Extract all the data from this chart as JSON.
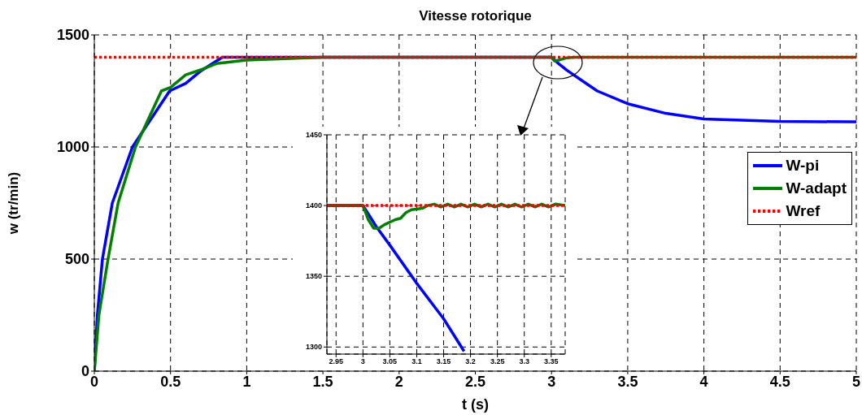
{
  "chart_data": [
    {
      "type": "line",
      "title": "Vitesse rotorique",
      "xlabel": "t (s)",
      "ylabel": "w (tr/min)",
      "xlim": [
        0,
        5
      ],
      "xticks": [
        0,
        0.5,
        1,
        1.5,
        2,
        2.5,
        3,
        3.5,
        4,
        4.5,
        5
      ],
      "ylim": [
        0,
        1500
      ],
      "yticks": [
        0,
        500,
        1000,
        1500
      ],
      "grid": true,
      "legend": "right",
      "marker": "none",
      "series": [
        {
          "name": "W-pi",
          "color": "#0000ff",
          "line_style": "solid",
          "x": [
            0,
            0.02,
            0.053,
            0.118,
            0.25,
            0.494,
            0.6,
            0.7,
            0.84,
            1,
            3,
            3.05,
            3.1,
            3.2,
            3.3,
            3.5,
            3.75,
            4,
            4.5,
            5
          ],
          "values": [
            0,
            250,
            500,
            750,
            1000,
            1250,
            1284,
            1340,
            1400,
            1400,
            1400,
            1370,
            1343,
            1296,
            1250,
            1193,
            1150,
            1125,
            1114,
            1112
          ]
        },
        {
          "name": "W-adapt",
          "color": "#008000",
          "line_style": "solid",
          "x": [
            0,
            0.03,
            0.09,
            0.156,
            0.27,
            0.44,
            0.5,
            0.6,
            0.71,
            0.8,
            1,
            1.5,
            3,
            3.02,
            3.05,
            3.1,
            3.15,
            5
          ],
          "values": [
            0,
            250,
            500,
            750,
            1000,
            1250,
            1266,
            1322,
            1347,
            1372,
            1388,
            1400,
            1400,
            1384,
            1388,
            1398,
            1400,
            1400
          ]
        },
        {
          "name": "Wref",
          "color": "#ff0000",
          "line_style": "dotted",
          "x": [
            0,
            5
          ],
          "values": [
            1400,
            1400
          ]
        }
      ]
    },
    {
      "type": "line",
      "xlim": [
        2.933,
        3.376
      ],
      "xticks": [
        2.95,
        3,
        3.05,
        3.1,
        3.15,
        3.2,
        3.25,
        3.3,
        3.35
      ],
      "ylim": [
        1295,
        1450
      ],
      "yticks": [
        1300,
        1350,
        1400,
        1450
      ],
      "grid": true,
      "marker": "none",
      "series": [
        {
          "color": "#0000ff",
          "line_style": "solid",
          "x": [
            2.933,
            3,
            3.025,
            3.05,
            3.1,
            3.15,
            3.188
          ],
          "values": [
            1400,
            1400,
            1385,
            1372,
            1345,
            1320,
            1297
          ]
        },
        {
          "color": "#008000",
          "line_style": "solid",
          "x": [
            2.933,
            3,
            3.01,
            3.02,
            3.03,
            3.04,
            3.06,
            3.07,
            3.08,
            3.09,
            3.11,
            3.12,
            3.1325,
            3.145,
            3.1575,
            3.17,
            3.1825,
            3.195,
            3.2075,
            3.22,
            3.2325,
            3.245,
            3.2575,
            3.27,
            3.2825,
            3.295,
            3.3075,
            3.32,
            3.3325,
            3.345,
            3.3575,
            3.376
          ],
          "values": [
            1400,
            1400,
            1390,
            1384,
            1384,
            1386.5,
            1390,
            1391,
            1395,
            1397,
            1398,
            1400,
            1401,
            1399,
            1401,
            1399,
            1401,
            1399,
            1401,
            1399,
            1401,
            1399,
            1401,
            1399,
            1401,
            1399,
            1401,
            1399,
            1401,
            1399,
            1401,
            1400
          ]
        },
        {
          "color": "#ff0000",
          "line_style": "dotted",
          "x": [
            2.933,
            3.376
          ],
          "values": [
            1400,
            1400
          ]
        }
      ]
    }
  ]
}
